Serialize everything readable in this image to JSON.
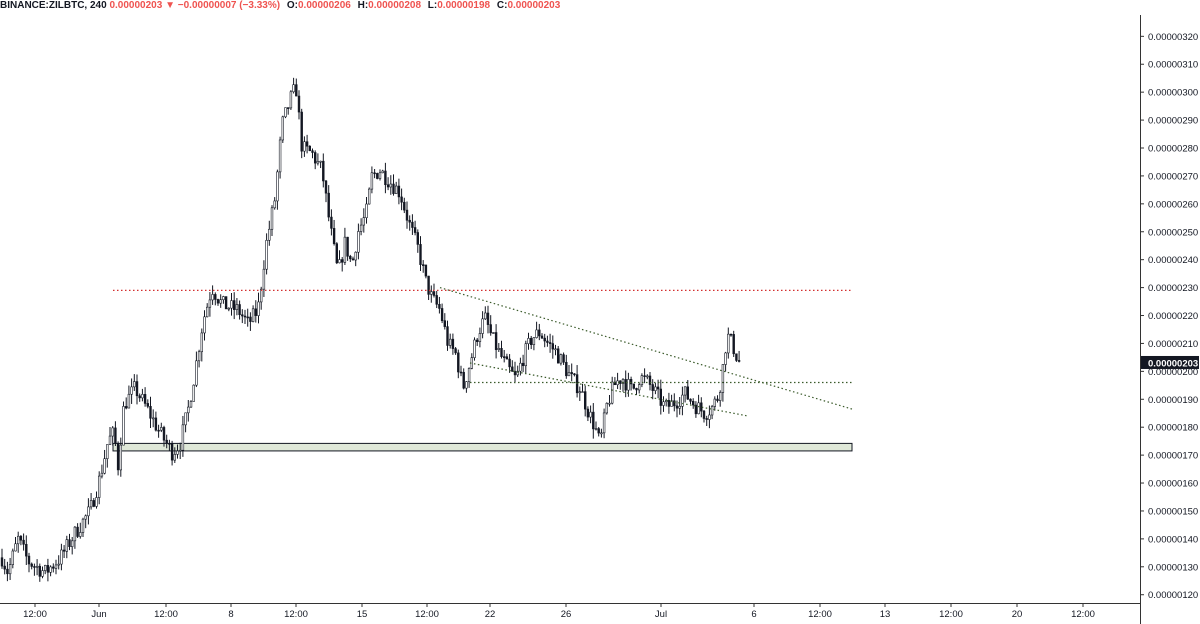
{
  "header": {
    "symbol": "BINANCE:ZILBTC, 240",
    "last": "0.00000203",
    "change_arrow": "▼",
    "change": "−0.00000007 (−3.33%)",
    "open_label": "O:",
    "open": "0.00000206",
    "high_label": "H:",
    "high": "0.00000208",
    "low_label": "L:",
    "low": "0.00000198",
    "close_label": "C:",
    "close": "0.00000203"
  },
  "colors": {
    "negative": "#ef5350",
    "candle": "#131722",
    "resistance": "#d32f2f",
    "trend": "#3a5a2a",
    "zone_fill": "#dfe8d8",
    "price_tag": "#131722"
  },
  "chart_data": {
    "type": "candlestick",
    "title": "BINANCE:ZILBTC, 240",
    "ylim": [
      1.15e-06,
      3.22e-06
    ],
    "y_ticks": [
      "0.00000120",
      "0.00000130",
      "0.00000140",
      "0.00000150",
      "0.00000160",
      "0.00000170",
      "0.00000180",
      "0.00000190",
      "0.00000200",
      "0.00000210",
      "0.00000220",
      "0.00000230",
      "0.00000240",
      "0.00000250",
      "0.00000260",
      "0.00000270",
      "0.00000280",
      "0.00000290",
      "0.00000300",
      "0.00000310",
      "0.00000320"
    ],
    "x_ticks": [
      "12:00",
      "Jun",
      "12:00",
      "8",
      "12:00",
      "15",
      "12:00",
      "22",
      "26",
      "Jul",
      "6",
      "12:00",
      "13",
      "12:00",
      "20",
      "12:00"
    ],
    "last_price": "0.00000203",
    "close_path": [
      [
        0,
        1.35
      ],
      [
        8,
        1.28
      ],
      [
        18,
        1.4
      ],
      [
        28,
        1.32
      ],
      [
        45,
        1.28
      ],
      [
        60,
        1.33
      ],
      [
        75,
        1.42
      ],
      [
        90,
        1.5
      ],
      [
        100,
        1.62
      ],
      [
        108,
        1.75
      ],
      [
        114,
        1.78
      ],
      [
        118,
        1.66
      ],
      [
        124,
        1.88
      ],
      [
        135,
        1.94
      ],
      [
        148,
        1.86
      ],
      [
        160,
        1.78
      ],
      [
        172,
        1.71
      ],
      [
        180,
        1.74
      ],
      [
        188,
        1.86
      ],
      [
        195,
        2.0
      ],
      [
        203,
        2.18
      ],
      [
        212,
        2.3
      ],
      [
        222,
        2.24
      ],
      [
        238,
        2.22
      ],
      [
        248,
        2.17
      ],
      [
        258,
        2.22
      ],
      [
        266,
        2.45
      ],
      [
        275,
        2.62
      ],
      [
        282,
        2.88
      ],
      [
        290,
        2.97
      ],
      [
        296,
        3.02
      ],
      [
        302,
        2.8
      ],
      [
        312,
        2.78
      ],
      [
        322,
        2.72
      ],
      [
        330,
        2.52
      ],
      [
        338,
        2.35
      ],
      [
        345,
        2.46
      ],
      [
        352,
        2.38
      ],
      [
        358,
        2.5
      ],
      [
        366,
        2.56
      ],
      [
        372,
        2.7
      ],
      [
        380,
        2.72
      ],
      [
        390,
        2.68
      ],
      [
        400,
        2.64
      ],
      [
        410,
        2.52
      ],
      [
        418,
        2.44
      ],
      [
        426,
        2.32
      ],
      [
        432,
        2.26
      ],
      [
        440,
        2.22
      ],
      [
        448,
        2.1
      ],
      [
        456,
        2.06
      ],
      [
        463,
        1.94
      ],
      [
        470,
        2.03
      ],
      [
        478,
        2.14
      ],
      [
        485,
        2.19
      ],
      [
        492,
        2.12
      ],
      [
        500,
        2.06
      ],
      [
        508,
        2.01
      ],
      [
        516,
        1.97
      ],
      [
        522,
        2.04
      ],
      [
        532,
        2.12
      ],
      [
        540,
        2.14
      ],
      [
        548,
        2.1
      ],
      [
        556,
        2.07
      ],
      [
        564,
        2.02
      ],
      [
        572,
        1.97
      ],
      [
        580,
        1.94
      ],
      [
        588,
        1.86
      ],
      [
        595,
        1.8
      ],
      [
        600,
        1.74
      ],
      [
        607,
        1.88
      ],
      [
        614,
        1.95
      ],
      [
        622,
        1.98
      ],
      [
        632,
        1.93
      ],
      [
        640,
        1.98
      ],
      [
        648,
        1.96
      ],
      [
        656,
        1.92
      ],
      [
        665,
        1.87
      ],
      [
        675,
        1.89
      ],
      [
        685,
        1.92
      ],
      [
        695,
        1.88
      ],
      [
        705,
        1.85
      ],
      [
        712,
        1.87
      ],
      [
        718,
        1.91
      ],
      [
        722,
        1.99
      ],
      [
        727,
        2.13
      ],
      [
        732,
        2.1
      ],
      [
        736,
        2.06
      ],
      [
        740,
        2.03
      ]
    ],
    "annotations": {
      "resistance_level": 2.29,
      "support_zone": [
        1.715,
        1.742
      ],
      "support_zone_x": [
        113,
        852
      ],
      "flat_line": {
        "x": [
          470,
          852
        ],
        "y": 1.96
      },
      "upper_trendline": {
        "x": [
          440,
          852
        ],
        "y": [
          2.3,
          1.865
        ]
      },
      "lower_trendline": {
        "x": [
          470,
          748
        ],
        "y": [
          2.03,
          1.84
        ]
      }
    }
  }
}
